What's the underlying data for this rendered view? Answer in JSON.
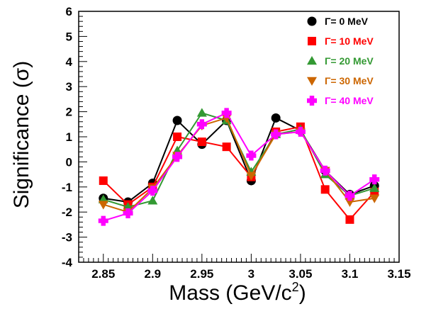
{
  "chart_data": {
    "type": "line",
    "xlabel": "Mass (GeV/c",
    "xlabel_sup": "2",
    "xlabel_end": ")",
    "ylabel": "Significance (σ)",
    "xlim": [
      2.825,
      3.15
    ],
    "ylim": [
      -4,
      6
    ],
    "x_ticks": [
      2.85,
      2.9,
      2.95,
      3.0,
      3.05,
      3.1,
      3.15
    ],
    "x_tick_labels": [
      "2.85",
      "2.9",
      "2.95",
      "3",
      "3.05",
      "3.1",
      "3.15"
    ],
    "y_ticks": [
      -4,
      -3,
      -2,
      -1,
      0,
      1,
      2,
      3,
      4,
      5,
      6
    ],
    "y_tick_labels": [
      "-4",
      "-3",
      "-2",
      "-1",
      "0",
      "1",
      "2",
      "3",
      "4",
      "5",
      "6"
    ],
    "legend_position": "top-right",
    "x": [
      2.85,
      2.875,
      2.9,
      2.925,
      2.95,
      2.975,
      3.0,
      3.025,
      3.05,
      3.075,
      3.1,
      3.125
    ],
    "series": [
      {
        "name": "Γ=  0 MeV",
        "color": "#000000",
        "marker": "circle",
        "values": [
          -1.45,
          -1.6,
          -0.85,
          1.65,
          0.7,
          1.65,
          -0.75,
          1.75,
          1.25,
          -0.35,
          -1.3,
          -0.95
        ]
      },
      {
        "name": "Γ= 10 MeV",
        "color": "#ff0000",
        "marker": "square",
        "values": [
          -0.75,
          -1.7,
          -1.0,
          1.0,
          0.8,
          0.6,
          -0.6,
          1.2,
          1.4,
          -1.1,
          -2.3,
          -1.2
        ]
      },
      {
        "name": "Γ= 20 MeV",
        "color": "#339933",
        "marker": "triangle-up",
        "values": [
          -1.5,
          -1.8,
          -1.55,
          0.45,
          1.95,
          1.65,
          -0.4,
          1.1,
          1.3,
          -0.5,
          -1.35,
          -1.05
        ]
      },
      {
        "name": "Γ= 30 MeV",
        "color": "#cc6600",
        "marker": "triangle-down",
        "values": [
          -1.7,
          -2.0,
          -1.05,
          0.25,
          1.45,
          1.75,
          -0.55,
          1.1,
          1.2,
          -0.35,
          -1.6,
          -1.45
        ]
      },
      {
        "name": "Γ= 40 MeV",
        "color": "#ff00ff",
        "marker": "plus",
        "values": [
          -2.35,
          -2.05,
          -1.15,
          0.2,
          1.5,
          1.95,
          0.25,
          1.1,
          1.2,
          -0.35,
          -1.35,
          -0.7
        ]
      }
    ]
  }
}
